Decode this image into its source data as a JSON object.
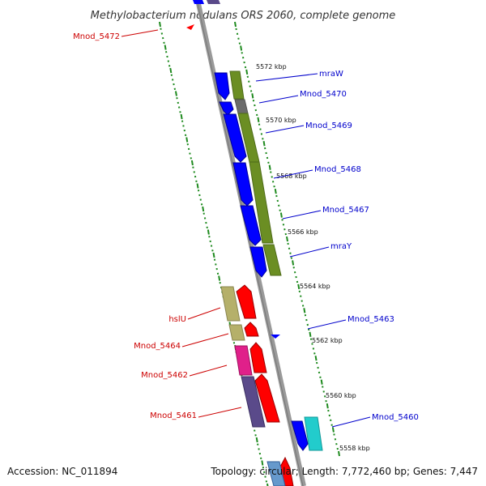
{
  "title": "Methylobacterium nodulans ORS 2060, complete genome",
  "footer": {
    "accession": "Accession: NC_011894",
    "summary": "Topology: circular; Length: 7,772,460 bp; Genes: 7,447"
  },
  "colors": {
    "forward_label": "#0000cc",
    "reverse_label": "#cc0000",
    "tick_green": "#1e8a1e",
    "backbone": "#999999",
    "cog_green": "#6b8e23",
    "cog_olive": "#b5b06a",
    "cog_magenta": "#e0208a",
    "cog_purple": "#5a4a8a",
    "cog_cyan": "#22cccc",
    "cds_blue": "#0000ff",
    "cds_red": "#ff0000"
  },
  "kbp_ticks": [
    "5572 kbp",
    "5570 kbp",
    "5568 kbp",
    "5566 kbp",
    "5564 kbp",
    "5562 kbp",
    "5560 kbp",
    "5558 kbp"
  ],
  "forward_labels": [
    "mraW",
    "Mnod_5470",
    "Mnod_5469",
    "Mnod_5468",
    "Mnod_5467",
    "mraY",
    "Mnod_5463",
    "Mnod_5460"
  ],
  "reverse_labels": [
    "Mnod_5472",
    "hslU",
    "Mnod_5464",
    "Mnod_5462",
    "Mnod_5461"
  ]
}
